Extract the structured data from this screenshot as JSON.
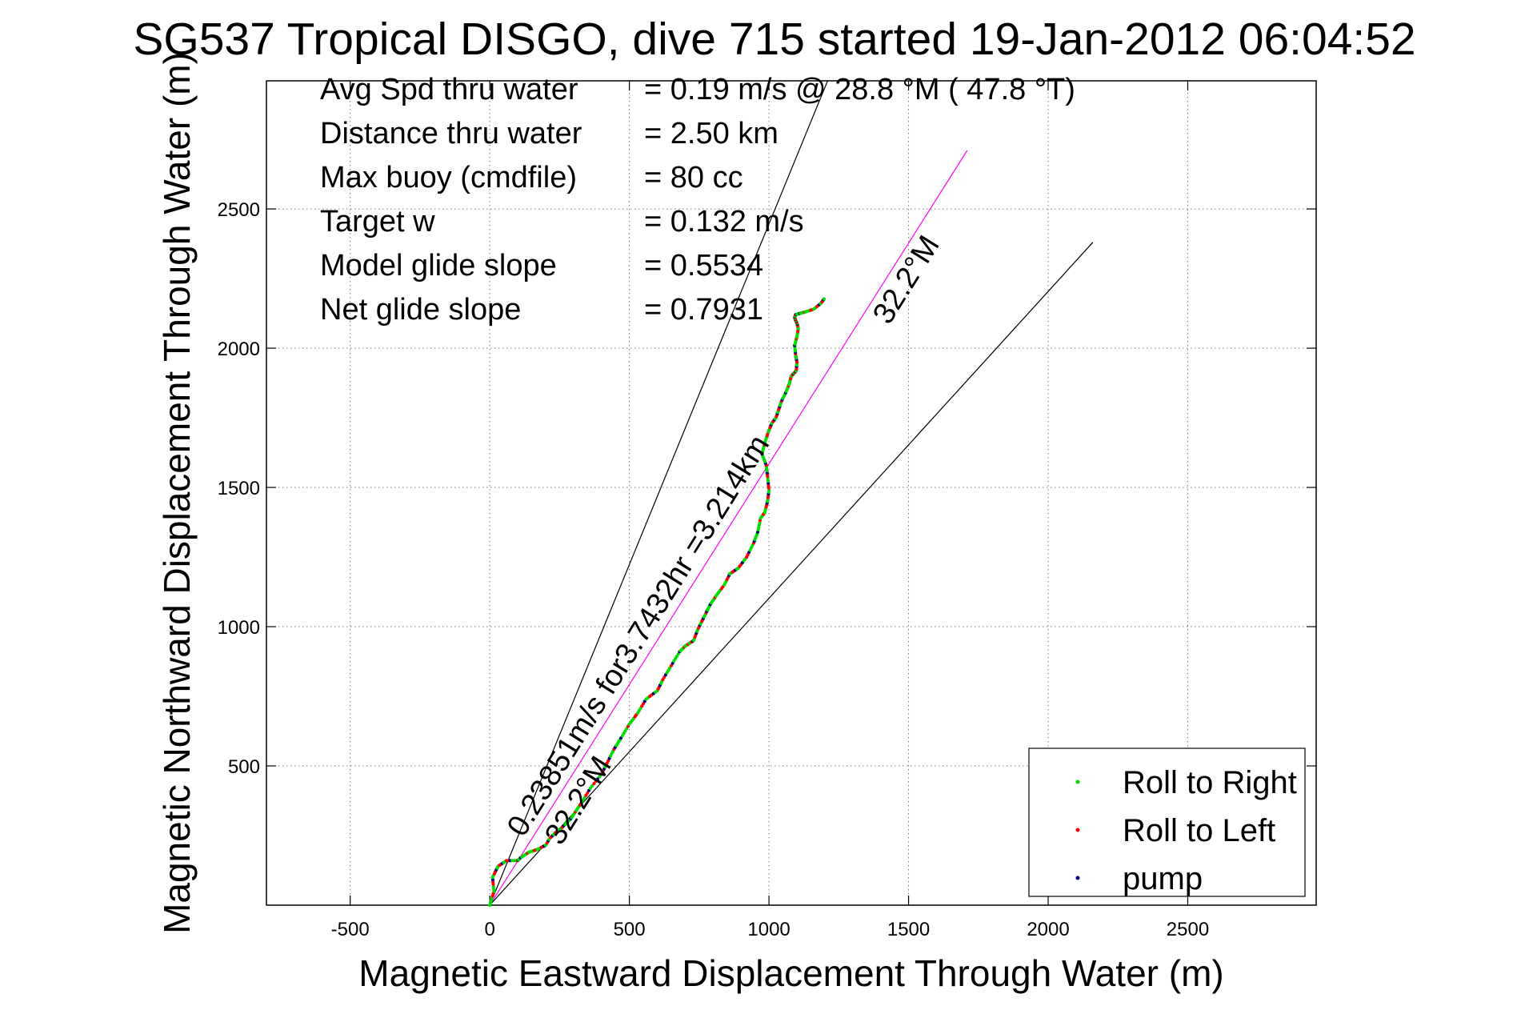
{
  "chart_data": {
    "type": "scatter",
    "title": "SG537 Tropical DISGO, dive 715 started 19-Jan-2012 06:04:52",
    "xlabel": "Magnetic Eastward Displacement Through Water (m)",
    "ylabel": "Magnetic Northward Displacement Through Water (m)",
    "xlim": [
      -800,
      2960
    ],
    "ylim": [
      0,
      2960
    ],
    "xticks": [
      -500,
      0,
      500,
      1000,
      1500,
      2000,
      2500
    ],
    "yticks": [
      500,
      1000,
      1500,
      2000,
      2500
    ],
    "grid": true,
    "legend_position": "bottom-right",
    "stats": [
      {
        "label": "Avg Spd thru water",
        "value": "=  0.19 m/s @  28.8 °M ( 47.8 °T)"
      },
      {
        "label": "Distance thru water",
        "value": "=  2.50 km"
      },
      {
        "label": "Max buoy (cmdfile)",
        "value": "= 80 cc"
      },
      {
        "label": "Target w",
        "value": "= 0.132 m/s"
      },
      {
        "label": "Model glide slope",
        "value": "= 0.5534"
      },
      {
        "label": "Net glide slope",
        "value": "= 0.7931"
      }
    ],
    "reference_lines": [
      {
        "from": [
          0,
          0
        ],
        "to": [
          1210,
          2960
        ],
        "color": "#000000"
      },
      {
        "from": [
          0,
          0
        ],
        "to": [
          2160,
          2380
        ],
        "color": "#000000"
      },
      {
        "from": [
          0,
          0
        ],
        "to": [
          1710,
          2710
        ],
        "color": "#ff00ff"
      }
    ],
    "annotations": [
      {
        "text": "0.23851m/s for3.7432hr =3.214km",
        "x": 120,
        "y": 240,
        "angle": 58
      },
      {
        "text": "32.2°M",
        "x": 255,
        "y": 210,
        "angle": 58
      },
      {
        "text": "32.2°M",
        "x": 1430,
        "y": 2080,
        "angle": 58
      }
    ],
    "series": [
      {
        "name": "Roll to Right",
        "color": "#00dd00"
      },
      {
        "name": "Roll to Left",
        "color": "#ff0000"
      },
      {
        "name": "pump",
        "color": "#000080"
      }
    ],
    "track": {
      "color": "#0000ff",
      "x": [
        0,
        15,
        10,
        30,
        60,
        100,
        110,
        140,
        170,
        200,
        215,
        235,
        260,
        290,
        310,
        330,
        360,
        400,
        420,
        445,
        470,
        500,
        530,
        560,
        600,
        620,
        650,
        680,
        700,
        715,
        730,
        745,
        760,
        775,
        790,
        810,
        840,
        860,
        890,
        920,
        945,
        960,
        970,
        985,
        995,
        1000,
        995,
        990,
        975,
        985,
        998,
        1010,
        1025,
        1035,
        1045,
        1060,
        1072,
        1080,
        1090,
        1098,
        1100,
        1095,
        1092,
        1100,
        1105,
        1100,
        1095,
        1092,
        1095,
        1110,
        1130,
        1160,
        1185,
        1200
      ],
      "y": [
        0,
        50,
        100,
        140,
        160,
        160,
        170,
        190,
        200,
        215,
        240,
        260,
        280,
        310,
        340,
        370,
        420,
        470,
        510,
        560,
        600,
        650,
        690,
        740,
        770,
        810,
        860,
        910,
        930,
        940,
        950,
        990,
        1020,
        1050,
        1080,
        1110,
        1150,
        1190,
        1210,
        1250,
        1300,
        1340,
        1390,
        1410,
        1450,
        1490,
        1540,
        1580,
        1620,
        1660,
        1700,
        1730,
        1750,
        1780,
        1810,
        1840,
        1870,
        1900,
        1910,
        1920,
        1950,
        1980,
        2010,
        2040,
        2070,
        2090,
        2100,
        2110,
        2120,
        2125,
        2130,
        2140,
        2160,
        2180
      ]
    }
  }
}
